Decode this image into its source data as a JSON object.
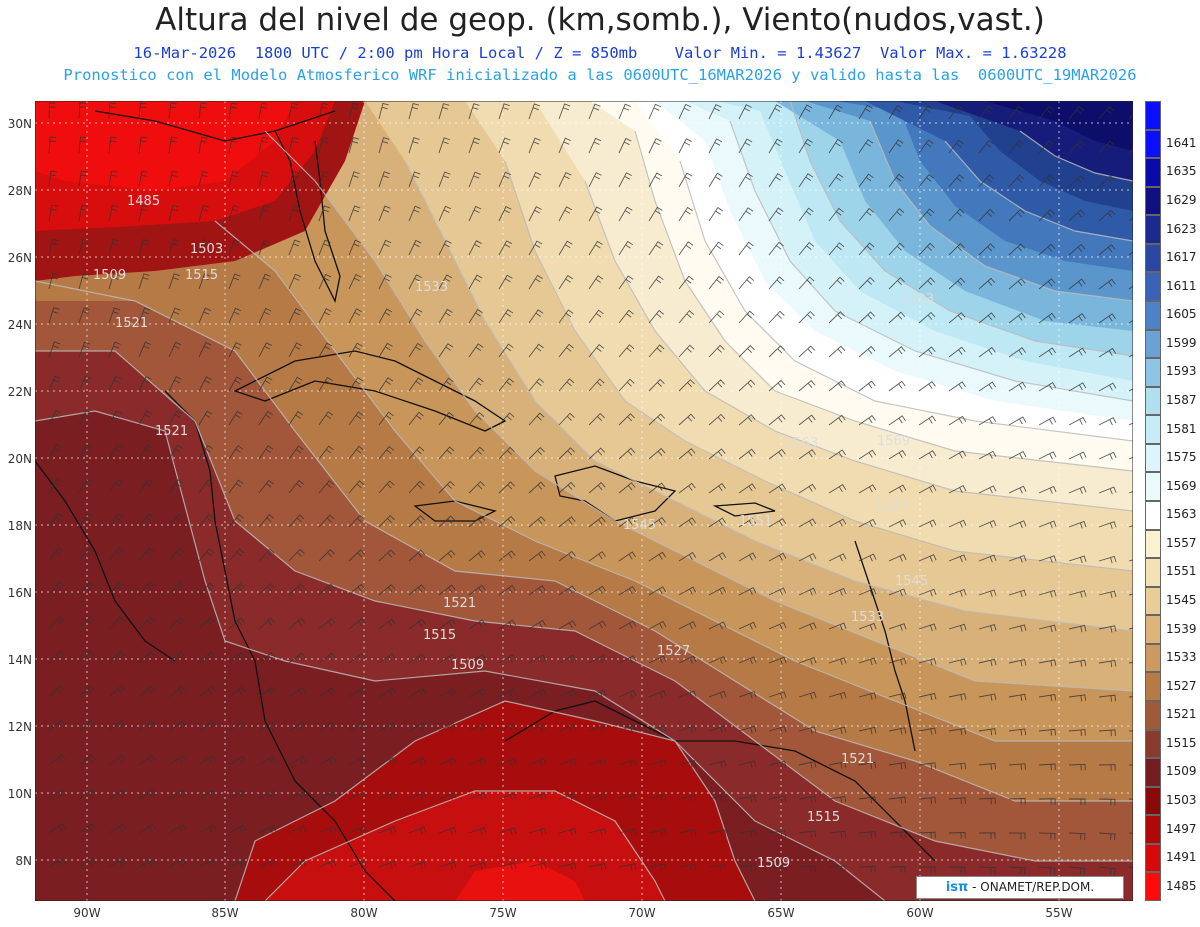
{
  "header": {
    "title": "Altura del nivel de geop. (km,somb.), Viento(nudos,vast.)",
    "subtitle1": "16-Mar-2026  1800 UTC / 2:00 pm Hora Local / Z = 850mb    Valor Min. = 1.43627  Valor Max. = 1.63228",
    "subtitle2": "Pronostico con el Modelo Atmosferico WRF inicializado a las 0600UTC_16MAR2026 y valido hasta las  0600UTC_19MAR2026"
  },
  "axes": {
    "lat_labels": [
      "30N",
      "28N",
      "26N",
      "24N",
      "22N",
      "20N",
      "18N",
      "16N",
      "14N",
      "12N",
      "10N",
      "8N"
    ],
    "lon_labels": [
      "90W",
      "85W",
      "80W",
      "75W",
      "70W",
      "65W",
      "60W",
      "55W"
    ]
  },
  "colorbar": {
    "labels": [
      "1641",
      "1635",
      "1629",
      "1623",
      "1617",
      "1611",
      "1605",
      "1599",
      "1593",
      "1587",
      "1581",
      "1575",
      "1569",
      "1563",
      "1557",
      "1551",
      "1545",
      "1539",
      "1533",
      "1527",
      "1521",
      "1515",
      "1509",
      "1503",
      "1497",
      "1491",
      "1485"
    ],
    "colors": [
      "#0a10ff",
      "#0a0aa8",
      "#101080",
      "#1a2a8e",
      "#2a47a6",
      "#3a62b6",
      "#4e82c6",
      "#6aa2d6",
      "#8ec4e4",
      "#b0e0f0",
      "#c8ecf6",
      "#dcf4fa",
      "#eafafc",
      "#ffffff",
      "#fbf1d0",
      "#f3e2b6",
      "#e8cd98",
      "#dcb47a",
      "#cc9a5e",
      "#b67a46",
      "#a05a38",
      "#8a3a2c",
      "#741e22",
      "#8a0a0a",
      "#b00808",
      "#d80808",
      "#ff0a0a"
    ]
  },
  "contour_labels": [
    "1485",
    "1503",
    "1509",
    "1515",
    "1521",
    "1521",
    "1521",
    "1515",
    "1509",
    "1521",
    "1515",
    "1509",
    "1533",
    "1545",
    "1551",
    "1557",
    "1563",
    "1569",
    "1545",
    "1533",
    "1593",
    "1527",
    "1521"
  ],
  "credit": {
    "logo": "isπ",
    "text": " - ONAMET/REP.DOM."
  }
}
